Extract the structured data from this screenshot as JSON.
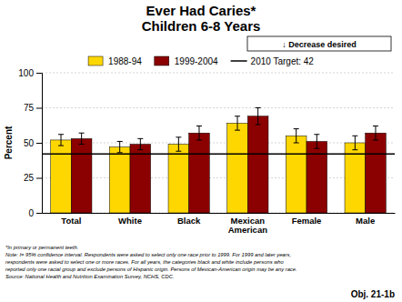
{
  "chart_data": {
    "type": "bar",
    "title": "Ever Had Caries*",
    "subtitle": "Children 6-8 Years",
    "ylabel": "Percent",
    "categories": [
      "Total",
      "White",
      "Black",
      "Mexican\nAmerican",
      "Female",
      "Male"
    ],
    "series": [
      {
        "name": "1988-94",
        "color": "#FFD700",
        "values": [
          52,
          47,
          49,
          64,
          55,
          50
        ],
        "errors": [
          4,
          4,
          5,
          5,
          5,
          5
        ]
      },
      {
        "name": "1999-2004",
        "color": "#8B0000",
        "values": [
          53,
          49,
          57,
          69,
          51,
          57
        ],
        "errors": [
          4,
          4,
          5,
          6,
          5,
          5
        ]
      }
    ],
    "target_line": {
      "label": "2010 Target: 42",
      "value": 42,
      "color": "#000000"
    },
    "ylim": [
      0,
      100
    ],
    "yticks": [
      0,
      25,
      50,
      75,
      100
    ],
    "grid": true,
    "legend": "top",
    "annotations": [
      "↓  Decrease desired",
      "Obj. 21-1b"
    ],
    "footnotes": [
      "*In primary or permanent teeth.",
      "Note: I= 95% confidence interval. Respondents were asked to select only one race prior to 1999. For 1999 and later years,",
      "respondents were asked to select one or more races. For all years, the categories black and white include persons who",
      "reported only one racial group and exclude persons of Hispanic origin. Persons of Mexican-American origin may be any race.",
      "Source: National Health and Nutrition Examination Survey, NCHS, CDC."
    ]
  }
}
